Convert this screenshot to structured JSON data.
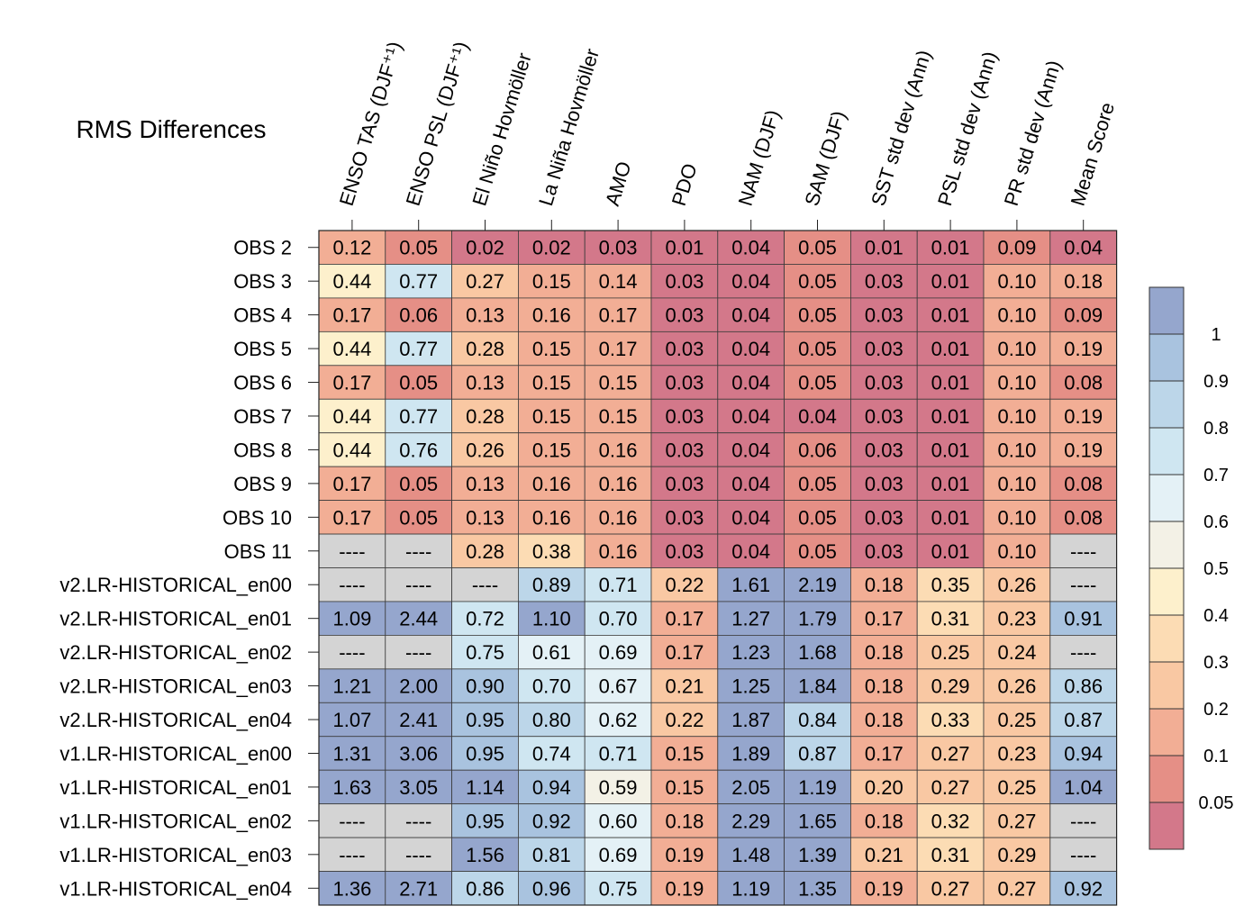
{
  "chart_data": {
    "type": "heatmap",
    "title": "RMS Differences",
    "columns": [
      "ENSO TAS (DJF⁺¹)",
      "ENSO PSL (DJF⁺¹)",
      "El Niño Hovmöller",
      "La Niña Hovmöller",
      "AMO",
      "PDO",
      "NAM (DJF)",
      "SAM (DJF)",
      "SST std dev (Ann)",
      "PSL std dev (Ann)",
      "PR std dev (Ann)",
      "Mean Score"
    ],
    "rows": [
      "OBS 2",
      "OBS 3",
      "OBS 4",
      "OBS 5",
      "OBS 6",
      "OBS 7",
      "OBS 8",
      "OBS 9",
      "OBS 10",
      "OBS 11",
      "v2.LR-HISTORICAL_en00",
      "v2.LR-HISTORICAL_en01",
      "v2.LR-HISTORICAL_en02",
      "v2.LR-HISTORICAL_en03",
      "v2.LR-HISTORICAL_en04",
      "v1.LR-HISTORICAL_en00",
      "v1.LR-HISTORICAL_en01",
      "v1.LR-HISTORICAL_en02",
      "v1.LR-HISTORICAL_en03",
      "v1.LR-HISTORICAL_en04"
    ],
    "values": [
      [
        "0.12",
        "0.05",
        "0.02",
        "0.02",
        "0.03",
        "0.01",
        "0.04",
        "0.05",
        "0.01",
        "0.01",
        "0.09",
        "0.04"
      ],
      [
        "0.44",
        "0.77",
        "0.27",
        "0.15",
        "0.14",
        "0.03",
        "0.04",
        "0.05",
        "0.03",
        "0.01",
        "0.10",
        "0.18"
      ],
      [
        "0.17",
        "0.06",
        "0.13",
        "0.16",
        "0.17",
        "0.03",
        "0.04",
        "0.05",
        "0.03",
        "0.01",
        "0.10",
        "0.09"
      ],
      [
        "0.44",
        "0.77",
        "0.28",
        "0.15",
        "0.17",
        "0.03",
        "0.04",
        "0.05",
        "0.03",
        "0.01",
        "0.10",
        "0.19"
      ],
      [
        "0.17",
        "0.05",
        "0.13",
        "0.15",
        "0.15",
        "0.03",
        "0.04",
        "0.05",
        "0.03",
        "0.01",
        "0.10",
        "0.08"
      ],
      [
        "0.44",
        "0.77",
        "0.28",
        "0.15",
        "0.15",
        "0.03",
        "0.04",
        "0.04",
        "0.03",
        "0.01",
        "0.10",
        "0.19"
      ],
      [
        "0.44",
        "0.76",
        "0.26",
        "0.15",
        "0.16",
        "0.03",
        "0.04",
        "0.06",
        "0.03",
        "0.01",
        "0.10",
        "0.19"
      ],
      [
        "0.17",
        "0.05",
        "0.13",
        "0.16",
        "0.16",
        "0.03",
        "0.04",
        "0.05",
        "0.03",
        "0.01",
        "0.10",
        "0.08"
      ],
      [
        "0.17",
        "0.05",
        "0.13",
        "0.16",
        "0.16",
        "0.03",
        "0.04",
        "0.05",
        "0.03",
        "0.01",
        "0.10",
        "0.08"
      ],
      [
        "----",
        "----",
        "0.28",
        "0.38",
        "0.16",
        "0.03",
        "0.04",
        "0.05",
        "0.03",
        "0.01",
        "0.10",
        "----"
      ],
      [
        "----",
        "----",
        "----",
        "0.89",
        "0.71",
        "0.22",
        "1.61",
        "2.19",
        "0.18",
        "0.35",
        "0.26",
        "----"
      ],
      [
        "1.09",
        "2.44",
        "0.72",
        "1.10",
        "0.70",
        "0.17",
        "1.27",
        "1.79",
        "0.17",
        "0.31",
        "0.23",
        "0.91"
      ],
      [
        "----",
        "----",
        "0.75",
        "0.61",
        "0.69",
        "0.17",
        "1.23",
        "1.68",
        "0.18",
        "0.25",
        "0.24",
        "----"
      ],
      [
        "1.21",
        "2.00",
        "0.90",
        "0.70",
        "0.67",
        "0.21",
        "1.25",
        "1.84",
        "0.18",
        "0.29",
        "0.26",
        "0.86"
      ],
      [
        "1.07",
        "2.41",
        "0.95",
        "0.80",
        "0.62",
        "0.22",
        "1.87",
        "0.84",
        "0.18",
        "0.33",
        "0.25",
        "0.87"
      ],
      [
        "1.31",
        "3.06",
        "0.95",
        "0.74",
        "0.71",
        "0.15",
        "1.89",
        "0.87",
        "0.17",
        "0.27",
        "0.23",
        "0.94"
      ],
      [
        "1.63",
        "3.05",
        "1.14",
        "0.94",
        "0.59",
        "0.15",
        "2.05",
        "1.19",
        "0.20",
        "0.27",
        "0.25",
        "1.04"
      ],
      [
        "----",
        "----",
        "0.95",
        "0.92",
        "0.60",
        "0.18",
        "2.29",
        "1.65",
        "0.18",
        "0.32",
        "0.27",
        "----"
      ],
      [
        "----",
        "----",
        "1.56",
        "0.81",
        "0.69",
        "0.19",
        "1.48",
        "1.39",
        "0.21",
        "0.31",
        "0.29",
        "----"
      ],
      [
        "1.36",
        "2.71",
        "0.86",
        "0.96",
        "0.75",
        "0.19",
        "1.19",
        "1.35",
        "0.19",
        "0.27",
        "0.27",
        "0.92"
      ]
    ],
    "missing_color": "#d4d4d4",
    "colorbar": {
      "labels": [
        "1",
        "0.9",
        "0.8",
        "0.7",
        "0.6",
        "0.5",
        "0.4",
        "0.3",
        "0.2",
        "0.1",
        "0.05"
      ],
      "colors_top_to_bottom": [
        "#95a6cd",
        "#a9c3df",
        "#bcd6e9",
        "#cfe6f1",
        "#e4f1f6",
        "#f3f1e6",
        "#fdf0cc",
        "#fcdcb4",
        "#f9c8a3",
        "#f2ae95",
        "#e58f86",
        "#d3788a"
      ],
      "bins_bottom_to_top": [
        0,
        0.05,
        0.1,
        0.2,
        0.3,
        0.4,
        0.5,
        0.6,
        0.7,
        0.8,
        0.9,
        1.0
      ]
    }
  }
}
